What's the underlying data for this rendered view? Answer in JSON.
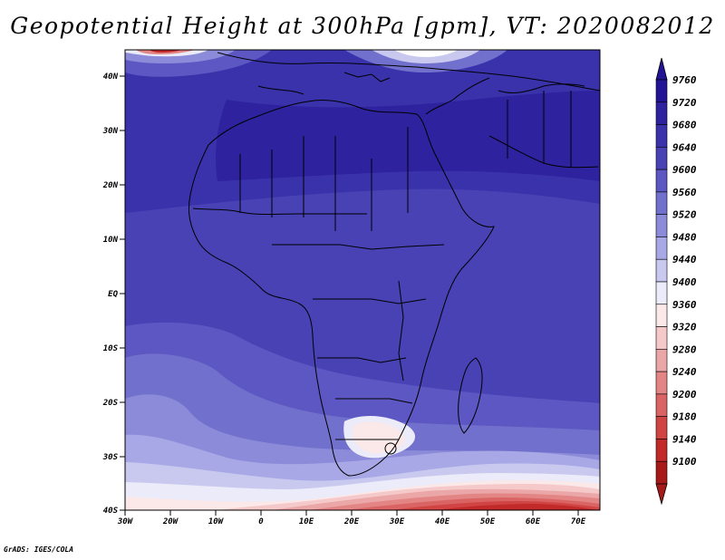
{
  "title": "Geopotential Height at 300hPa [gpm], VT: 2020082012",
  "credit": "GrADS: IGES/COLA",
  "map": {
    "lat_labels": [
      "40N",
      "30N",
      "20N",
      "10N",
      "EQ",
      "10S",
      "20S",
      "30S",
      "40S"
    ],
    "lon_labels": [
      "30W",
      "20W",
      "10W",
      "0",
      "10E",
      "20E",
      "30E",
      "40E",
      "50E",
      "60E",
      "70E"
    ]
  },
  "colorbar": {
    "levels": [
      "9760",
      "9720",
      "9680",
      "9640",
      "9600",
      "9560",
      "9520",
      "9480",
      "9440",
      "9400",
      "9360",
      "9320",
      "9280",
      "9240",
      "9200",
      "9180",
      "9140",
      "9100"
    ],
    "colors": [
      "#231496",
      "#2e229f",
      "#3a32ab",
      "#4842b5",
      "#5c57c2",
      "#7270cd",
      "#8b8bd9",
      "#a8a8e6",
      "#c9c9f0",
      "#ebebf9",
      "#fbe8e8",
      "#f5c9c9",
      "#eba7a7",
      "#e38585",
      "#da6464",
      "#d14444",
      "#c22a2a",
      "#a81a1a"
    ]
  }
}
